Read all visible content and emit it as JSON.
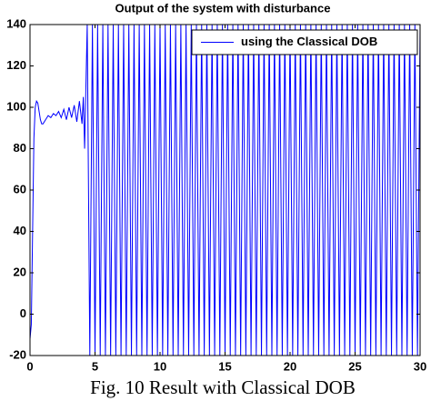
{
  "chart_data": {
    "type": "line",
    "title": "Output of the system with disturbance",
    "caption": "Fig. 10 Result with Classical DOB",
    "xlim": [
      0,
      30
    ],
    "xticks": [
      0,
      5,
      10,
      15,
      20,
      25,
      30
    ],
    "ylim": [
      -20,
      140
    ],
    "yticks": [
      -20,
      0,
      20,
      40,
      60,
      80,
      100,
      120,
      140
    ],
    "legend": "upper right",
    "x": [
      0,
      0.1,
      0.2,
      0.3,
      0.4,
      0.5,
      0.6,
      0.7,
      0.8,
      0.9,
      1,
      1.2,
      1.4,
      1.6,
      1.8,
      2,
      2.2,
      2.4,
      2.6,
      2.8,
      3,
      3.2,
      3.4,
      3.6,
      3.8,
      4,
      4.1,
      4.2,
      4.3,
      4.4,
      4.6,
      4.8,
      5,
      5.2,
      5.4,
      5.6,
      5.8,
      6,
      6.2,
      6.4,
      6.6,
      6.8,
      7,
      7.2,
      7.4,
      7.6,
      7.8,
      8,
      8.2,
      8.4,
      8.6,
      8.8,
      9,
      9.2,
      9.4,
      9.6,
      9.8,
      10,
      10.2,
      10.4,
      10.6,
      10.8,
      11,
      11.2,
      11.4,
      11.6,
      11.8,
      12,
      12.2,
      12.4,
      12.6,
      12.8,
      13,
      13.2,
      13.4,
      13.6,
      13.8,
      14,
      14.2,
      14.4,
      14.6,
      14.8,
      15,
      15.2,
      15.4,
      15.6,
      15.8,
      16,
      16.2,
      16.4,
      16.6,
      16.8,
      17,
      17.2,
      17.4,
      17.6,
      17.8,
      18,
      18.2,
      18.4,
      18.6,
      18.8,
      19,
      19.2,
      19.4,
      19.6,
      19.8,
      20,
      20.2,
      20.4,
      20.6,
      20.8,
      21,
      21.2,
      21.4,
      21.6,
      21.8,
      22,
      22.2,
      22.4,
      22.6,
      22.8,
      23,
      23.2,
      23.4,
      23.6,
      23.8,
      24,
      24.2,
      24.4,
      24.6,
      24.8,
      25,
      25.2,
      25.4,
      25.6,
      25.8,
      26,
      26.2,
      26.4,
      26.6,
      26.8,
      27,
      27.2,
      27.4,
      27.6,
      27.8,
      28,
      28.2,
      28.4,
      28.6,
      28.8,
      29,
      29.2,
      29.4,
      29.6,
      29.8,
      30
    ],
    "series": [
      {
        "name": "using the Classical DOB",
        "color": "#0000ff",
        "values": [
          -12,
          -5,
          40,
          85,
          100,
          103,
          102,
          98,
          94,
          92,
          92,
          94,
          96,
          95,
          97,
          96,
          98,
          95,
          99,
          94,
          100,
          95,
          101,
          93,
          103,
          92,
          105,
          80,
          110,
          140,
          -20,
          140,
          -20,
          140,
          -20,
          140,
          -20,
          140,
          -20,
          140,
          -20,
          140,
          -20,
          140,
          -20,
          140,
          -20,
          140,
          -20,
          140,
          -20,
          140,
          -20,
          140,
          -20,
          140,
          -20,
          140,
          -20,
          140,
          -20,
          140,
          -20,
          140,
          -20,
          140,
          -20,
          140,
          -20,
          140,
          -20,
          140,
          -20,
          140,
          -20,
          140,
          -20,
          140,
          -20,
          140,
          -20,
          140,
          -20,
          140,
          -20,
          140,
          -20,
          140,
          -20,
          140,
          -20,
          140,
          -20,
          140,
          -20,
          140,
          -20,
          140,
          -20,
          140,
          -20,
          140,
          -20,
          140,
          -20,
          140,
          -20,
          140,
          -20,
          140,
          -20,
          140,
          -20,
          140,
          -20,
          140,
          -20,
          140,
          -20,
          140,
          -20,
          140,
          -20,
          140,
          -20,
          140,
          -20,
          140,
          -20,
          140,
          -20,
          140,
          -20,
          140,
          -20,
          140,
          -20,
          140,
          -20,
          140,
          -20,
          140,
          -20,
          140,
          -20,
          140,
          -20,
          140,
          -20,
          140,
          -20,
          140,
          -20,
          140,
          -20,
          140,
          -20,
          140
        ]
      }
    ]
  }
}
